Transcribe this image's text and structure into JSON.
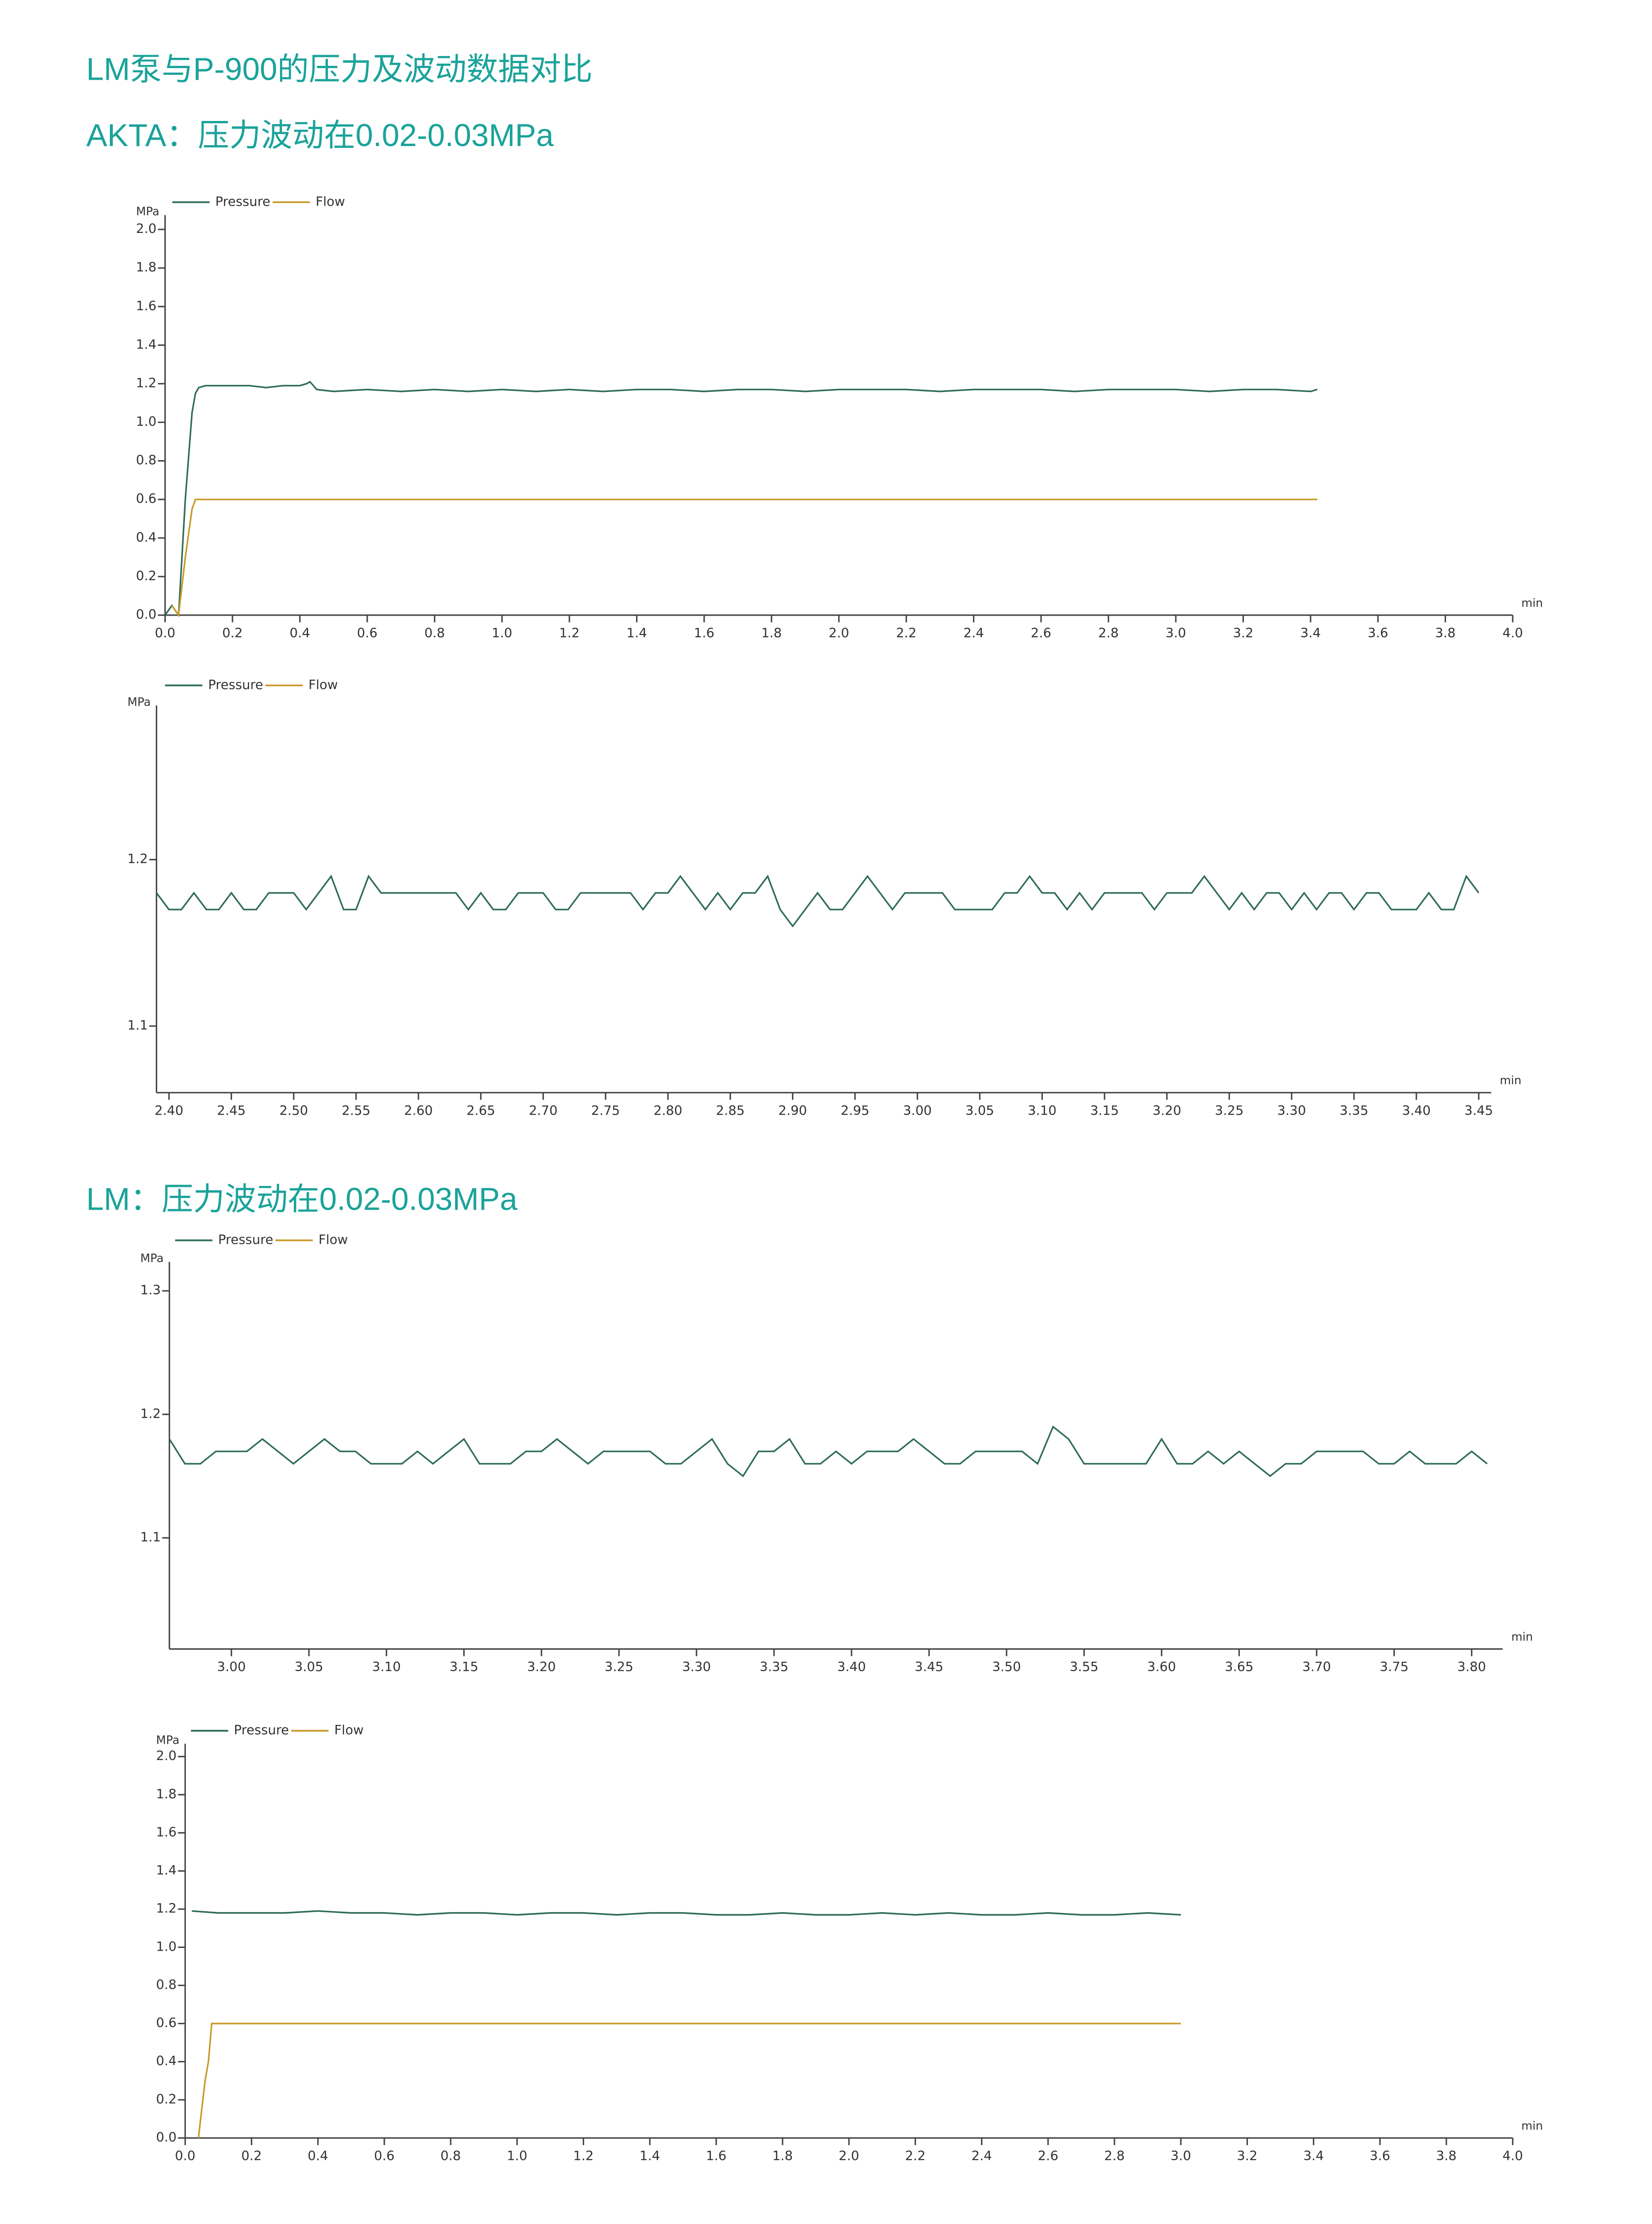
{
  "headings": [
    "LM泵与P-900的压力及波动数据对比",
    "AKTA：压力波动在0.02-0.03MPa",
    "LM：压力波动在0.02-0.03MPa"
  ],
  "chart_data": [
    {
      "type": "line",
      "y_label": "MPa",
      "x_label": "min",
      "xlim": [
        0,
        4
      ],
      "ylim": [
        0,
        2
      ],
      "xticks": [
        {
          "value": 0,
          "label": "0.0"
        },
        0.2,
        0.4,
        0.6,
        0.8,
        {
          "value": 1,
          "label": "1.0"
        },
        1.2,
        1.4,
        1.6,
        1.8,
        {
          "value": 2,
          "label": "2.0"
        },
        2.2,
        2.4,
        2.6,
        2.8,
        {
          "value": 3,
          "label": "3.0"
        },
        3.2,
        3.4,
        3.6,
        3.8,
        {
          "value": 4,
          "label": "4.0"
        }
      ],
      "yticks": [
        {
          "value": 0,
          "label": "0.0"
        },
        0.2,
        0.4,
        0.6,
        0.8,
        {
          "value": 1,
          "label": "1.0"
        },
        1.2,
        1.4,
        1.6,
        1.8,
        {
          "value": 2,
          "label": "2.0"
        }
      ],
      "series": [
        {
          "name": "Pressure",
          "color": "#2e6b5a",
          "x": [
            0,
            0.02,
            0.04,
            0.06,
            0.08,
            0.09,
            0.1,
            0.12,
            0.15,
            0.2,
            0.25,
            0.3,
            0.35,
            0.4,
            0.42,
            0.43,
            0.45,
            0.5,
            0.6,
            0.7,
            0.8,
            0.9,
            1.0,
            1.1,
            1.2,
            1.3,
            1.4,
            1.5,
            1.6,
            1.7,
            1.8,
            1.9,
            2.0,
            2.1,
            2.2,
            2.3,
            2.4,
            2.5,
            2.6,
            2.7,
            2.8,
            2.9,
            3.0,
            3.1,
            3.2,
            3.3,
            3.4,
            3.42
          ],
          "values": [
            0,
            0.05,
            0,
            0.6,
            1.05,
            1.15,
            1.18,
            1.19,
            1.19,
            1.19,
            1.19,
            1.18,
            1.19,
            1.19,
            1.2,
            1.21,
            1.17,
            1.16,
            1.17,
            1.16,
            1.17,
            1.16,
            1.17,
            1.16,
            1.17,
            1.16,
            1.17,
            1.17,
            1.16,
            1.17,
            1.17,
            1.16,
            1.17,
            1.17,
            1.17,
            1.16,
            1.17,
            1.17,
            1.17,
            1.16,
            1.17,
            1.17,
            1.17,
            1.16,
            1.17,
            1.17,
            1.16,
            1.17
          ]
        },
        {
          "name": "Flow",
          "color": "#c89a2a",
          "x": [
            0.02,
            0.04,
            0.06,
            0.08,
            0.09,
            3.42
          ],
          "values": [
            0.05,
            0,
            0.3,
            0.55,
            0.6,
            0.6
          ]
        }
      ]
    },
    {
      "type": "line",
      "y_label": "MPa",
      "x_label": "min",
      "xlim": [
        2.39,
        3.46
      ],
      "ylim": [
        1.06,
        1.29
      ],
      "xticks": [
        {
          "value": 2.4,
          "label": "2.40"
        },
        2.45,
        {
          "value": 2.5,
          "label": "2.50"
        },
        2.55,
        {
          "value": 2.6,
          "label": "2.60"
        },
        2.65,
        {
          "value": 2.7,
          "label": "2.70"
        },
        2.75,
        {
          "value": 2.8,
          "label": "2.80"
        },
        2.85,
        {
          "value": 2.9,
          "label": "2.90"
        },
        2.95,
        {
          "value": 3,
          "label": "3.00"
        },
        3.05,
        {
          "value": 3.1,
          "label": "3.10"
        },
        3.15,
        {
          "value": 3.2,
          "label": "3.20"
        },
        3.25,
        {
          "value": 3.3,
          "label": "3.30"
        },
        3.35,
        {
          "value": 3.4,
          "label": "3.40"
        },
        3.45
      ],
      "yticks": [
        1.1,
        1.2
      ],
      "series": [
        {
          "name": "Pressure",
          "color": "#2e6b5a",
          "x": [
            2.39,
            2.4,
            2.41,
            2.42,
            2.43,
            2.44,
            2.45,
            2.46,
            2.47,
            2.48,
            2.49,
            2.5,
            2.51,
            2.52,
            2.53,
            2.54,
            2.55,
            2.56,
            2.57,
            2.58,
            2.59,
            2.6,
            2.61,
            2.62,
            2.63,
            2.64,
            2.65,
            2.66,
            2.67,
            2.68,
            2.69,
            2.7,
            2.71,
            2.72,
            2.73,
            2.74,
            2.75,
            2.76,
            2.77,
            2.78,
            2.79,
            2.8,
            2.81,
            2.82,
            2.83,
            2.84,
            2.85,
            2.86,
            2.87,
            2.88,
            2.89,
            2.9,
            2.91,
            2.92,
            2.93,
            2.94,
            2.95,
            2.96,
            2.97,
            2.98,
            2.99,
            3.0,
            3.01,
            3.02,
            3.03,
            3.04,
            3.05,
            3.06,
            3.07,
            3.08,
            3.09,
            3.1,
            3.11,
            3.12,
            3.13,
            3.14,
            3.15,
            3.16,
            3.17,
            3.18,
            3.19,
            3.2,
            3.21,
            3.22,
            3.23,
            3.24,
            3.25,
            3.26,
            3.27,
            3.28,
            3.29,
            3.3,
            3.31,
            3.32,
            3.33,
            3.34,
            3.35,
            3.36,
            3.37,
            3.38,
            3.39,
            3.4,
            3.41,
            3.42,
            3.43,
            3.44,
            3.45
          ],
          "values": [
            1.18,
            1.17,
            1.17,
            1.18,
            1.17,
            1.17,
            1.18,
            1.17,
            1.17,
            1.18,
            1.18,
            1.18,
            1.17,
            1.18,
            1.19,
            1.17,
            1.17,
            1.19,
            1.18,
            1.18,
            1.18,
            1.18,
            1.18,
            1.18,
            1.18,
            1.17,
            1.18,
            1.17,
            1.17,
            1.18,
            1.18,
            1.18,
            1.17,
            1.17,
            1.18,
            1.18,
            1.18,
            1.18,
            1.18,
            1.17,
            1.18,
            1.18,
            1.19,
            1.18,
            1.17,
            1.18,
            1.17,
            1.18,
            1.18,
            1.19,
            1.17,
            1.16,
            1.17,
            1.18,
            1.17,
            1.17,
            1.18,
            1.19,
            1.18,
            1.17,
            1.18,
            1.18,
            1.18,
            1.18,
            1.17,
            1.17,
            1.17,
            1.17,
            1.18,
            1.18,
            1.19,
            1.18,
            1.18,
            1.17,
            1.18,
            1.17,
            1.18,
            1.18,
            1.18,
            1.18,
            1.17,
            1.18,
            1.18,
            1.18,
            1.19,
            1.18,
            1.17,
            1.18,
            1.17,
            1.18,
            1.18,
            1.17,
            1.18,
            1.17,
            1.18,
            1.18,
            1.17,
            1.18,
            1.18,
            1.17,
            1.17,
            1.17,
            1.18,
            1.17,
            1.17,
            1.19,
            1.18
          ]
        },
        {
          "name": "Flow",
          "color": "#c89a2a",
          "x": [],
          "values": []
        }
      ]
    },
    {
      "type": "line",
      "y_label": "MPa",
      "x_label": "min",
      "xlim": [
        2.96,
        3.82
      ],
      "ylim": [
        1.01,
        1.32
      ],
      "xticks": [
        {
          "value": 3,
          "label": "3.00"
        },
        3.05,
        {
          "value": 3.1,
          "label": "3.10"
        },
        3.15,
        {
          "value": 3.2,
          "label": "3.20"
        },
        3.25,
        {
          "value": 3.3,
          "label": "3.30"
        },
        3.35,
        {
          "value": 3.4,
          "label": "3.40"
        },
        3.45,
        {
          "value": 3.5,
          "label": "3.50"
        },
        3.55,
        {
          "value": 3.6,
          "label": "3.60"
        },
        3.65,
        {
          "value": 3.7,
          "label": "3.70"
        },
        3.75,
        {
          "value": 3.8,
          "label": "3.80"
        }
      ],
      "yticks": [
        1.1,
        1.2,
        1.3
      ],
      "series": [
        {
          "name": "Pressure",
          "color": "#2e6b5a",
          "x": [
            2.96,
            2.97,
            2.98,
            2.99,
            3.0,
            3.01,
            3.02,
            3.03,
            3.04,
            3.05,
            3.06,
            3.07,
            3.08,
            3.09,
            3.1,
            3.11,
            3.12,
            3.13,
            3.14,
            3.15,
            3.16,
            3.17,
            3.18,
            3.19,
            3.2,
            3.21,
            3.22,
            3.23,
            3.24,
            3.25,
            3.26,
            3.27,
            3.28,
            3.29,
            3.3,
            3.31,
            3.32,
            3.33,
            3.34,
            3.35,
            3.36,
            3.37,
            3.38,
            3.39,
            3.4,
            3.41,
            3.42,
            3.43,
            3.44,
            3.45,
            3.46,
            3.47,
            3.48,
            3.49,
            3.5,
            3.51,
            3.52,
            3.53,
            3.54,
            3.55,
            3.56,
            3.57,
            3.58,
            3.59,
            3.6,
            3.61,
            3.62,
            3.63,
            3.64,
            3.65,
            3.66,
            3.67,
            3.68,
            3.69,
            3.7,
            3.71,
            3.72,
            3.73,
            3.74,
            3.75,
            3.76,
            3.77,
            3.78,
            3.79,
            3.8,
            3.81
          ],
          "values": [
            1.18,
            1.16,
            1.16,
            1.17,
            1.17,
            1.17,
            1.18,
            1.17,
            1.16,
            1.17,
            1.18,
            1.17,
            1.17,
            1.16,
            1.16,
            1.16,
            1.17,
            1.16,
            1.17,
            1.18,
            1.16,
            1.16,
            1.16,
            1.17,
            1.17,
            1.18,
            1.17,
            1.16,
            1.17,
            1.17,
            1.17,
            1.17,
            1.16,
            1.16,
            1.17,
            1.18,
            1.16,
            1.15,
            1.17,
            1.17,
            1.18,
            1.16,
            1.16,
            1.17,
            1.16,
            1.17,
            1.17,
            1.17,
            1.18,
            1.17,
            1.16,
            1.16,
            1.17,
            1.17,
            1.17,
            1.17,
            1.16,
            1.19,
            1.18,
            1.16,
            1.16,
            1.16,
            1.16,
            1.16,
            1.18,
            1.16,
            1.16,
            1.17,
            1.16,
            1.17,
            1.16,
            1.15,
            1.16,
            1.16,
            1.17,
            1.17,
            1.17,
            1.17,
            1.16,
            1.16,
            1.17,
            1.16,
            1.16,
            1.16,
            1.17,
            1.16
          ]
        },
        {
          "name": "Flow",
          "color": "#c89a2a",
          "x": [],
          "values": []
        }
      ]
    },
    {
      "type": "line",
      "y_label": "MPa",
      "x_label": "min",
      "xlim": [
        0,
        4
      ],
      "ylim": [
        0,
        2
      ],
      "xticks": [
        {
          "value": 0,
          "label": "0.0"
        },
        0.2,
        0.4,
        0.6,
        0.8,
        {
          "value": 1,
          "label": "1.0"
        },
        1.2,
        1.4,
        1.6,
        1.8,
        {
          "value": 2,
          "label": "2.0"
        },
        2.2,
        2.4,
        2.6,
        2.8,
        {
          "value": 3,
          "label": "3.0"
        },
        3.2,
        3.4,
        3.6,
        3.8,
        {
          "value": 4,
          "label": "4.0"
        }
      ],
      "yticks": [
        {
          "value": 0,
          "label": "0.0"
        },
        0.2,
        0.4,
        0.6,
        0.8,
        {
          "value": 1,
          "label": "1.0"
        },
        1.2,
        1.4,
        1.6,
        1.8,
        {
          "value": 2,
          "label": "2.0"
        }
      ],
      "series": [
        {
          "name": "Pressure",
          "color": "#2e6b5a",
          "x": [
            0.02,
            0.1,
            0.2,
            0.3,
            0.4,
            0.5,
            0.6,
            0.7,
            0.8,
            0.9,
            1.0,
            1.1,
            1.2,
            1.3,
            1.4,
            1.5,
            1.6,
            1.7,
            1.8,
            1.9,
            2.0,
            2.1,
            2.2,
            2.3,
            2.4,
            2.5,
            2.6,
            2.7,
            2.8,
            2.9,
            3.0
          ],
          "values": [
            1.19,
            1.18,
            1.18,
            1.18,
            1.19,
            1.18,
            1.18,
            1.17,
            1.18,
            1.18,
            1.17,
            1.18,
            1.18,
            1.17,
            1.18,
            1.18,
            1.17,
            1.17,
            1.18,
            1.17,
            1.17,
            1.18,
            1.17,
            1.18,
            1.17,
            1.17,
            1.18,
            1.17,
            1.17,
            1.18,
            1.17
          ]
        },
        {
          "name": "Flow",
          "color": "#c89a2a",
          "x": [
            0.04,
            0.05,
            0.06,
            0.07,
            0.08,
            3.0
          ],
          "values": [
            0,
            0.15,
            0.3,
            0.4,
            0.6,
            0.6
          ]
        }
      ]
    }
  ]
}
